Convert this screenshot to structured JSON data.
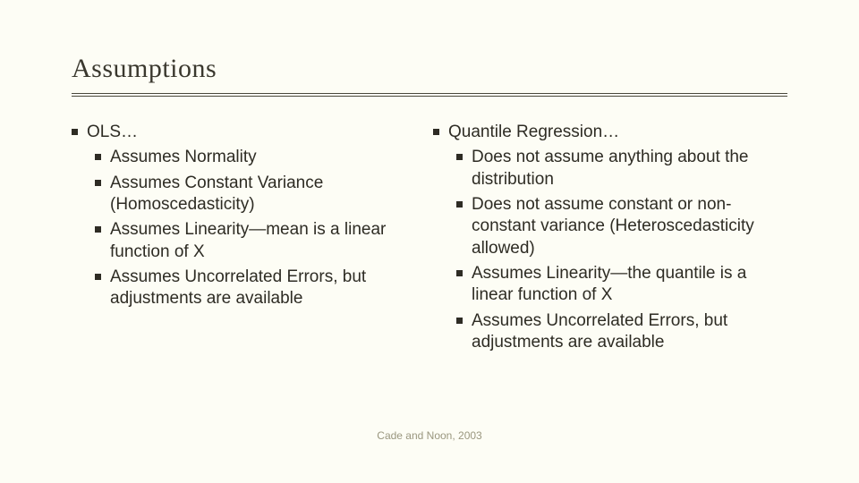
{
  "slide": {
    "title": "Assumptions",
    "background_color": "#fdfdf5",
    "text_color": "#343228",
    "rule_color": "#4a483c",
    "title_fontsize": 30,
    "body_fontsize": 19,
    "body_fontfamily": "Verdana",
    "title_fontfamily": "Georgia",
    "bullet_style": "square",
    "bullet_color": "#2e2c24",
    "citation": "Cade and Noon, 2003",
    "citation_color": "#9a977f",
    "citation_fontsize": 12
  },
  "left": {
    "heading": "OLS…",
    "items": [
      "Assumes Normality",
      "Assumes Constant Variance (Homoscedasticity)",
      "Assumes Linearity—mean is a linear function of X",
      "Assumes Uncorrelated Errors, but adjustments are available"
    ]
  },
  "right": {
    "heading": "Quantile Regression…",
    "items": [
      "Does not assume anything about the distribution",
      "Does not assume constant or non-constant variance (Heteroscedasticity allowed)",
      "Assumes Linearity—the quantile is a linear function of X",
      "Assumes Uncorrelated Errors, but adjustments are available"
    ]
  }
}
